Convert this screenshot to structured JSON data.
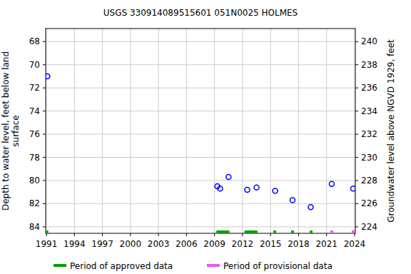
{
  "chart_data": {
    "type": "scatter",
    "title": "USGS 330914089515601 051N0025  HOLMES",
    "ylabel": [
      "Depth to water level, feet below land",
      "surface"
    ],
    "y2label": "Groundwater level above NGVD 1929, feet",
    "x": [
      1991.1,
      2009.3,
      2009.6,
      2010.5,
      2012.5,
      2013.5,
      2015.5,
      2017.35,
      2019.3,
      2021.55,
      2023.85
    ],
    "values": [
      71.0,
      80.5,
      80.7,
      79.7,
      80.8,
      80.6,
      80.9,
      81.7,
      82.3,
      80.3,
      80.7
    ],
    "color": "#0000ff",
    "marker": "circle",
    "xlim": [
      1990.92,
      2024.08
    ],
    "xticks": [
      1991,
      1994,
      1997,
      2000,
      2003,
      2006,
      2009,
      2012,
      2015,
      2018,
      2021,
      2024
    ],
    "ylim": [
      84.5625,
      66.875
    ],
    "yticks": [
      68,
      70,
      72,
      74,
      76,
      78,
      80,
      82,
      84
    ],
    "y2lim": [
      223.4375,
      241.125
    ],
    "y2ticks": [
      224,
      226,
      228,
      230,
      232,
      234,
      236,
      238,
      240
    ],
    "grid": true,
    "series": [
      {
        "name": "Period of approved data",
        "color": "#00a000",
        "periods": [
          [
            1990.92,
            1991.2
          ],
          [
            2009.2,
            2010.6
          ],
          [
            2012.2,
            2013.6
          ],
          [
            2015.3,
            2015.6
          ],
          [
            2017.2,
            2017.5
          ],
          [
            2019.2,
            2019.5
          ]
        ]
      },
      {
        "name": "Period of provisional data",
        "color": "#ee55ee",
        "periods": [
          [
            2021.4,
            2021.7
          ],
          [
            2023.7,
            2024.0
          ]
        ]
      }
    ]
  }
}
